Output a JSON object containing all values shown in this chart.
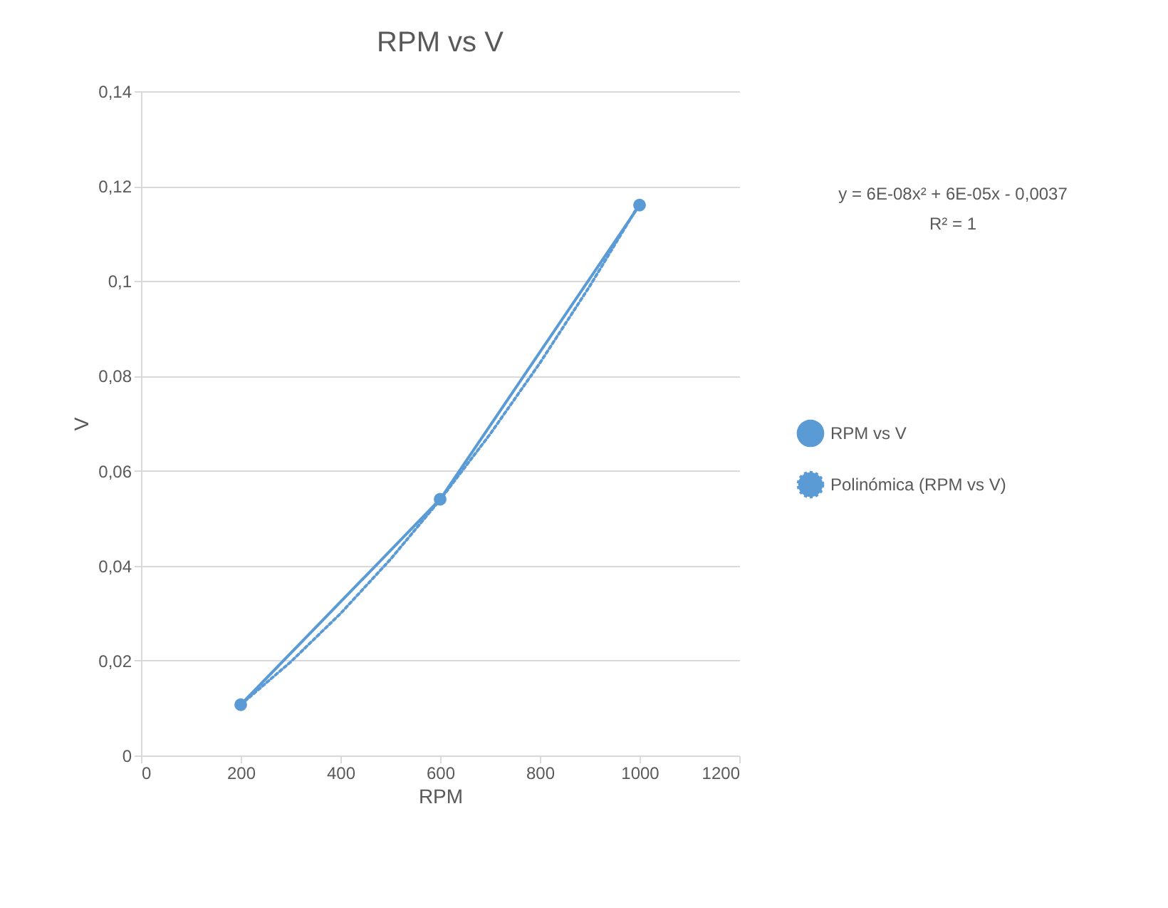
{
  "chart_data": {
    "type": "line",
    "title": "RPM vs V",
    "xlabel": "RPM",
    "ylabel": "V",
    "xlim": [
      0,
      1200
    ],
    "xticks": [
      0,
      200,
      400,
      600,
      800,
      1000,
      1200
    ],
    "ylim": [
      0,
      0.14
    ],
    "yticks": [
      {
        "value": 0,
        "label": "0"
      },
      {
        "value": 0.02,
        "label": "0,02"
      },
      {
        "value": 0.04,
        "label": "0,04"
      },
      {
        "value": 0.06,
        "label": "0,06"
      },
      {
        "value": 0.08,
        "label": "0,08"
      },
      {
        "value": 0.1,
        "label": "0,1"
      },
      {
        "value": 0.12,
        "label": "0,12"
      },
      {
        "value": 0.14,
        "label": "0,14"
      }
    ],
    "grid": "y",
    "legend": "right",
    "series": [
      {
        "name": "RPM vs V",
        "color": "#5b9bd5",
        "x": [
          200,
          600,
          1000
        ],
        "values": [
          0.0107,
          0.054,
          0.116
        ],
        "marker": "circle",
        "line_style": "solid"
      },
      {
        "name": "Polinómica (RPM vs V)",
        "type": "line",
        "color": "#5b9bd5",
        "x": [
          200,
          300,
          400,
          500,
          600,
          700,
          800,
          900,
          1000
        ],
        "values": [
          0.0107,
          0.0197,
          0.0299,
          0.0413,
          0.0539,
          0.0677,
          0.0827,
          0.0989,
          0.1163
        ],
        "marker": "none",
        "line_style": "dotted"
      }
    ],
    "annotations": [
      "y = 6E-08x² + 6E-05x - 0,0037",
      "R² = 1"
    ]
  }
}
